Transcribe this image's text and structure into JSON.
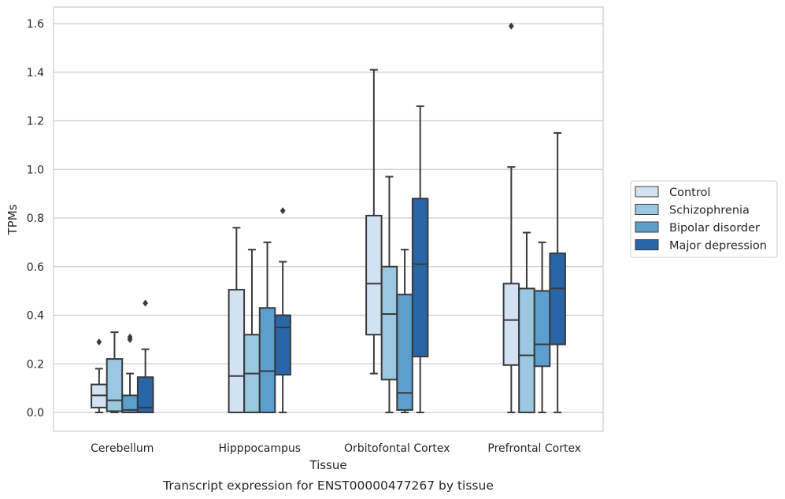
{
  "chart_data": {
    "type": "box",
    "title": "",
    "caption": "Transcript expression for ENST00000477267 by tissue",
    "xlabel": "Tissue",
    "ylabel": "TPMs",
    "ylim": [
      -0.08,
      1.67
    ],
    "yticks": [
      0.0,
      0.2,
      0.4,
      0.6,
      0.8,
      1.0,
      1.2,
      1.4,
      1.6
    ],
    "ytick_labels": [
      "0.0",
      "0.2",
      "0.4",
      "0.6",
      "0.8",
      "1.0",
      "1.2",
      "1.4",
      "1.6"
    ],
    "grid": "horizontal",
    "legend_position": "right",
    "categories": [
      "Cerebellum",
      "Hipppocampus",
      "Orbitofontal Cortex",
      "Prefrontal Cortex"
    ],
    "series": [
      {
        "name": "Control",
        "color": "#d2e2f2",
        "boxes": [
          {
            "whislo": 0.0,
            "q1": 0.02,
            "median": 0.07,
            "q3": 0.115,
            "whishi": 0.18,
            "fliers": [
              0.29
            ]
          },
          {
            "whislo": 0.0,
            "q1": 0.0,
            "median": 0.15,
            "q3": 0.505,
            "whishi": 0.76,
            "fliers": []
          },
          {
            "whislo": 0.16,
            "q1": 0.32,
            "median": 0.53,
            "q3": 0.81,
            "whishi": 1.41,
            "fliers": []
          },
          {
            "whislo": 0.0,
            "q1": 0.195,
            "median": 0.38,
            "q3": 0.53,
            "whishi": 1.01,
            "fliers": [
              1.59
            ]
          }
        ]
      },
      {
        "name": "Schizophrenia",
        "color": "#9ac8e0",
        "boxes": [
          {
            "whislo": 0.0,
            "q1": 0.005,
            "median": 0.05,
            "q3": 0.22,
            "whishi": 0.33,
            "fliers": []
          },
          {
            "whislo": 0.0,
            "q1": 0.0,
            "median": 0.16,
            "q3": 0.32,
            "whishi": 0.67,
            "fliers": []
          },
          {
            "whislo": 0.0,
            "q1": 0.135,
            "median": 0.405,
            "q3": 0.6,
            "whishi": 0.97,
            "fliers": []
          },
          {
            "whislo": 0.0,
            "q1": 0.0,
            "median": 0.235,
            "q3": 0.51,
            "whishi": 0.74,
            "fliers": []
          }
        ]
      },
      {
        "name": "Bipolar disorder",
        "color": "#5a9fcd",
        "boxes": [
          {
            "whislo": 0.0,
            "q1": 0.0,
            "median": 0.01,
            "q3": 0.07,
            "whishi": 0.16,
            "fliers": [
              0.3,
              0.31
            ]
          },
          {
            "whislo": 0.0,
            "q1": 0.0,
            "median": 0.17,
            "q3": 0.43,
            "whishi": 0.7,
            "fliers": []
          },
          {
            "whislo": 0.0,
            "q1": 0.01,
            "median": 0.08,
            "q3": 0.485,
            "whishi": 0.67,
            "fliers": []
          },
          {
            "whislo": 0.0,
            "q1": 0.19,
            "median": 0.28,
            "q3": 0.5,
            "whishi": 0.7,
            "fliers": []
          }
        ]
      },
      {
        "name": "Major depression",
        "color": "#2866a8",
        "boxes": [
          {
            "whislo": 0.0,
            "q1": 0.0,
            "median": 0.02,
            "q3": 0.145,
            "whishi": 0.26,
            "fliers": [
              0.45
            ]
          },
          {
            "whislo": 0.0,
            "q1": 0.155,
            "median": 0.35,
            "q3": 0.4,
            "whishi": 0.62,
            "fliers": [
              0.83
            ]
          },
          {
            "whislo": 0.0,
            "q1": 0.23,
            "median": 0.61,
            "q3": 0.88,
            "whishi": 1.26,
            "fliers": []
          },
          {
            "whislo": 0.0,
            "q1": 0.28,
            "median": 0.51,
            "q3": 0.655,
            "whishi": 1.15,
            "fliers": []
          }
        ]
      }
    ]
  }
}
